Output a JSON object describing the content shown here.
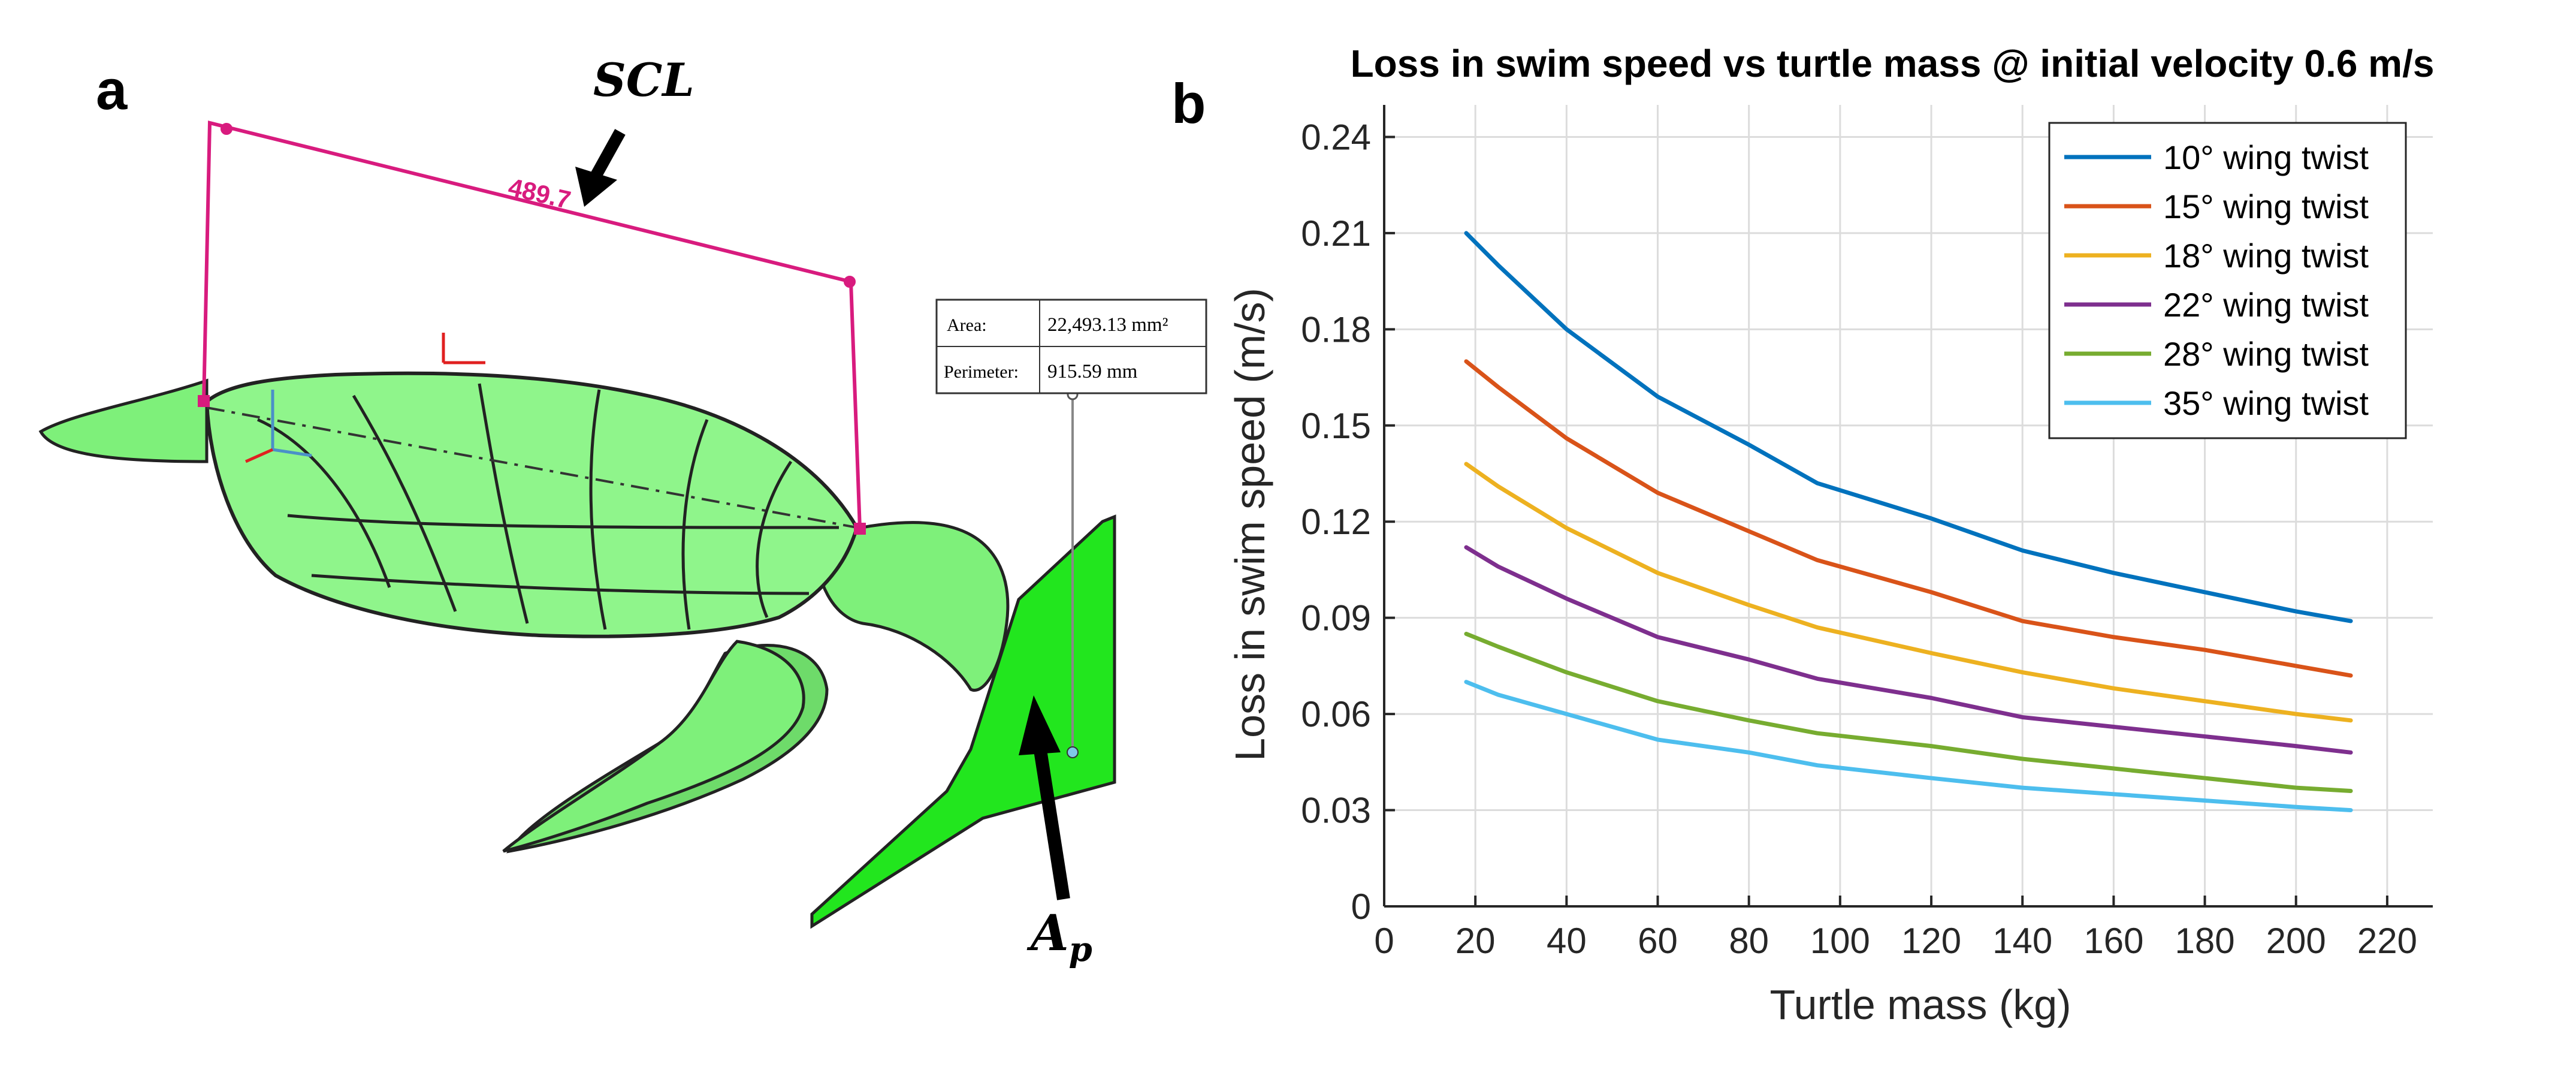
{
  "panel_a": {
    "letter": "a",
    "scl_label": "SCL",
    "dimension_value": "489.7",
    "area_label": "Area:",
    "area_value": "22,493.13 mm²",
    "perimeter_label": "Perimeter:",
    "perimeter_value": "915.59 mm",
    "ap_label": "A",
    "ap_subscript": "p",
    "colors": {
      "turtle_fill": "#7ef07a",
      "outline": "#222222",
      "dimension": "#d81b7e",
      "paddle": "#22e61e"
    }
  },
  "panel_b": {
    "letter": "b"
  },
  "chart_data": {
    "type": "line",
    "title": "Loss in swim speed vs turtle mass @ initial velocity 0.6 m/s",
    "xlabel": "Turtle mass (kg)",
    "ylabel": "Loss in swim speed (m/s)",
    "xlim": [
      0,
      230
    ],
    "ylim": [
      0,
      0.25
    ],
    "xticks": [
      0,
      20,
      40,
      60,
      80,
      100,
      120,
      140,
      160,
      180,
      200,
      220
    ],
    "yticks": [
      0,
      0.03,
      0.06,
      0.09,
      0.12,
      0.15,
      0.18,
      0.21,
      0.24
    ],
    "ytick_labels": [
      "0",
      "0.03",
      "0.06",
      "0.09",
      "0.12",
      "0.15",
      "0.18",
      "0.21",
      "0.24"
    ],
    "grid": true,
    "legend_position": "top-right",
    "x": [
      18,
      25,
      40,
      60,
      80,
      95,
      120,
      140,
      160,
      180,
      200,
      212
    ],
    "series": [
      {
        "name": "10° wing twist",
        "color": "#0072bd",
        "values": [
          0.21,
          0.2,
          0.18,
          0.159,
          0.144,
          0.132,
          0.121,
          0.111,
          0.104,
          0.098,
          0.092,
          0.089
        ]
      },
      {
        "name": "15° wing twist",
        "color": "#d95319",
        "values": [
          0.17,
          0.162,
          0.146,
          0.129,
          0.117,
          0.108,
          0.098,
          0.089,
          0.084,
          0.08,
          0.075,
          0.072
        ]
      },
      {
        "name": "18° wing twist",
        "color": "#edb120",
        "values": [
          0.138,
          0.131,
          0.118,
          0.104,
          0.094,
          0.087,
          0.079,
          0.073,
          0.068,
          0.064,
          0.06,
          0.058
        ]
      },
      {
        "name": "22° wing twist",
        "color": "#7e2f8e",
        "values": [
          0.112,
          0.106,
          0.096,
          0.084,
          0.077,
          0.071,
          0.065,
          0.059,
          0.056,
          0.053,
          0.05,
          0.048
        ]
      },
      {
        "name": "28° wing twist",
        "color": "#77ac30",
        "values": [
          0.085,
          0.081,
          0.073,
          0.064,
          0.058,
          0.054,
          0.05,
          0.046,
          0.043,
          0.04,
          0.037,
          0.036
        ]
      },
      {
        "name": "35° wing twist",
        "color": "#4dbeee",
        "values": [
          0.07,
          0.066,
          0.06,
          0.052,
          0.048,
          0.044,
          0.04,
          0.037,
          0.035,
          0.033,
          0.031,
          0.03
        ]
      }
    ]
  }
}
